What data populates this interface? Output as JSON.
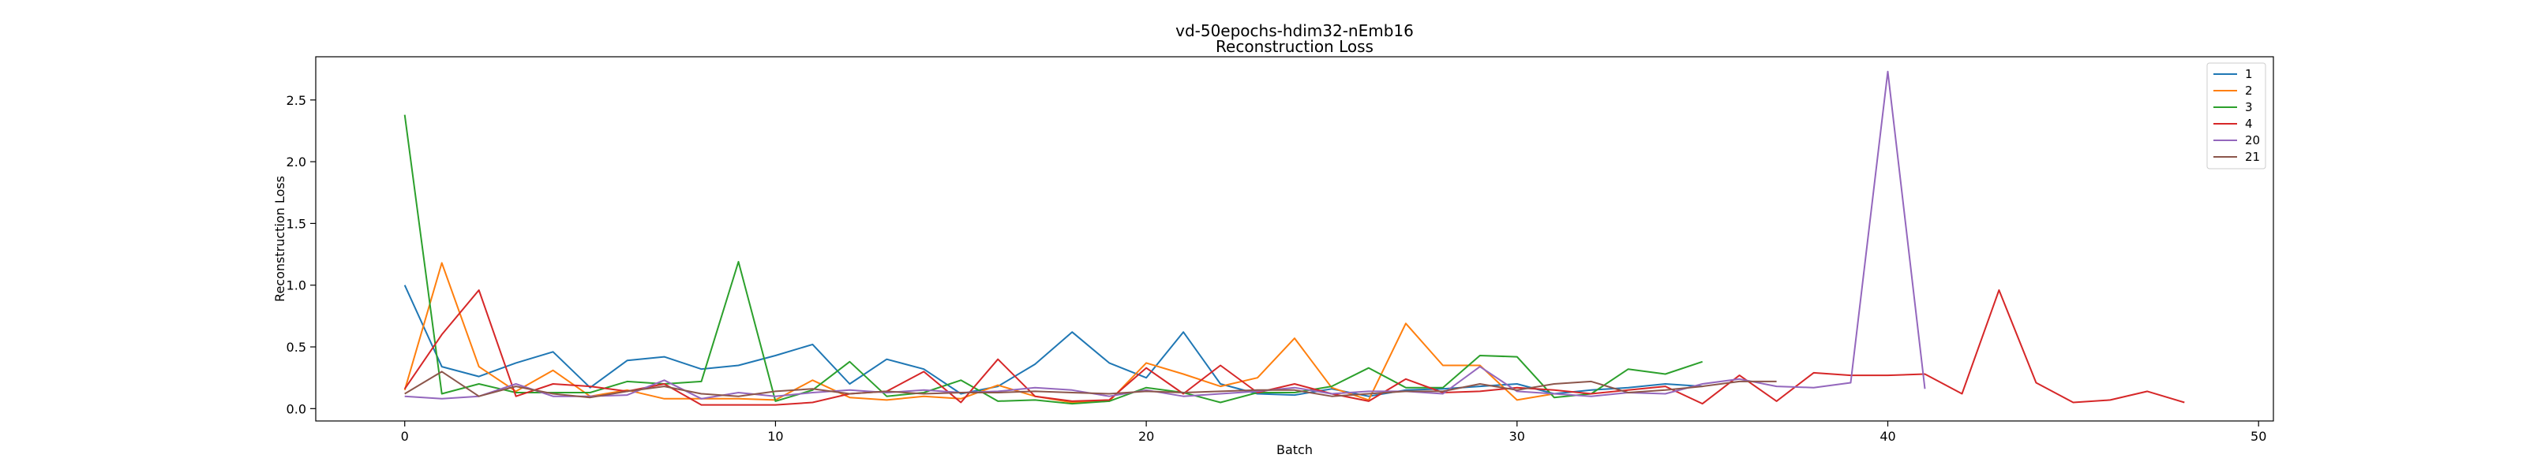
{
  "chart_data": {
    "type": "line",
    "title": "vd-50epochs-hdim32-nEmb16",
    "subtitle": "Reconstruction Loss",
    "xlabel": "Batch",
    "ylabel": "Reconstruction Loss",
    "xlim": [
      -2.4,
      50.4
    ],
    "ylim": [
      -0.1,
      2.85
    ],
    "xticks": [
      0,
      10,
      20,
      30,
      40,
      50
    ],
    "yticks": [
      0.0,
      0.5,
      1.0,
      1.5,
      2.0,
      2.5
    ],
    "xtick_labels": [
      "0",
      "10",
      "20",
      "30",
      "40",
      "50"
    ],
    "ytick_labels": [
      "0.0",
      "0.5",
      "1.0",
      "1.5",
      "2.0",
      "2.5"
    ],
    "grid": false,
    "legend_position": "top-right",
    "series": [
      {
        "name": "1",
        "color": "#1f77b4",
        "x": [
          0,
          1,
          2,
          3,
          4,
          5,
          6,
          7,
          8,
          9,
          10,
          11,
          12,
          13,
          14,
          15,
          16,
          17,
          18,
          19,
          20,
          21,
          22,
          23,
          24,
          25,
          26,
          27,
          28,
          29,
          30,
          31,
          32,
          33,
          34,
          35
        ],
        "y": [
          1.0,
          0.34,
          0.26,
          0.37,
          0.46,
          0.17,
          0.39,
          0.42,
          0.32,
          0.35,
          0.43,
          0.52,
          0.2,
          0.4,
          0.32,
          0.12,
          0.18,
          0.36,
          0.62,
          0.37,
          0.25,
          0.62,
          0.2,
          0.12,
          0.11,
          0.16,
          0.1,
          0.15,
          0.16,
          0.18,
          0.2,
          0.12,
          0.15,
          0.17,
          0.2,
          0.18
        ]
      },
      {
        "name": "2",
        "color": "#ff7f0e",
        "x": [
          0,
          1,
          2,
          3,
          4,
          5,
          6,
          7,
          8,
          9,
          10,
          11,
          12,
          13,
          14,
          15,
          16,
          17,
          18,
          19,
          20,
          21,
          22,
          23,
          24,
          25,
          26,
          27,
          28,
          29,
          30,
          31
        ],
        "y": [
          0.15,
          1.18,
          0.34,
          0.14,
          0.31,
          0.1,
          0.15,
          0.08,
          0.08,
          0.08,
          0.07,
          0.23,
          0.09,
          0.07,
          0.1,
          0.08,
          0.19,
          0.1,
          0.05,
          0.06,
          0.37,
          0.28,
          0.18,
          0.25,
          0.57,
          0.17,
          0.07,
          0.69,
          0.35,
          0.35,
          0.07,
          0.12
        ]
      },
      {
        "name": "3",
        "color": "#2ca02c",
        "x": [
          0,
          1,
          2,
          3,
          4,
          5,
          6,
          7,
          8,
          9,
          10,
          11,
          12,
          13,
          14,
          15,
          16,
          17,
          18,
          19,
          20,
          21,
          22,
          23,
          24,
          25,
          26,
          27,
          28,
          29,
          30,
          31,
          32,
          33,
          34,
          35
        ],
        "y": [
          2.38,
          0.12,
          0.2,
          0.13,
          0.13,
          0.13,
          0.22,
          0.2,
          0.22,
          1.19,
          0.06,
          0.15,
          0.38,
          0.1,
          0.13,
          0.23,
          0.06,
          0.07,
          0.04,
          0.06,
          0.17,
          0.13,
          0.05,
          0.13,
          0.13,
          0.18,
          0.33,
          0.17,
          0.17,
          0.43,
          0.42,
          0.09,
          0.12,
          0.32,
          0.28,
          0.38
        ]
      },
      {
        "name": "4",
        "color": "#d62728",
        "x": [
          0,
          1,
          2,
          3,
          4,
          5,
          6,
          7,
          8,
          9,
          10,
          11,
          12,
          13,
          14,
          15,
          16,
          17,
          18,
          19,
          20,
          21,
          22,
          23,
          24,
          25,
          26,
          27,
          28,
          29,
          30,
          31,
          32,
          33,
          34,
          35,
          36,
          37,
          38,
          39,
          40,
          41,
          42,
          43,
          44,
          45,
          46,
          47,
          48
        ],
        "y": [
          0.16,
          0.6,
          0.96,
          0.1,
          0.2,
          0.18,
          0.14,
          0.2,
          0.03,
          0.03,
          0.03,
          0.05,
          0.12,
          0.14,
          0.3,
          0.05,
          0.4,
          0.1,
          0.06,
          0.07,
          0.33,
          0.12,
          0.35,
          0.13,
          0.2,
          0.12,
          0.06,
          0.24,
          0.13,
          0.14,
          0.17,
          0.15,
          0.12,
          0.15,
          0.18,
          0.04,
          0.27,
          0.06,
          0.29,
          0.27,
          0.27,
          0.28,
          0.12,
          0.96,
          0.21,
          0.05,
          0.07,
          0.14,
          0.05
        ]
      },
      {
        "name": "20",
        "color": "#9467bd",
        "x": [
          0,
          1,
          2,
          3,
          4,
          5,
          6,
          7,
          8,
          9,
          10,
          11,
          12,
          13,
          14,
          15,
          16,
          17,
          18,
          19,
          20,
          21,
          22,
          23,
          24,
          25,
          26,
          27,
          28,
          29,
          30,
          31,
          32,
          33,
          34,
          35,
          36,
          37,
          38,
          39,
          40,
          41
        ],
        "y": [
          0.1,
          0.08,
          0.1,
          0.2,
          0.1,
          0.1,
          0.11,
          0.23,
          0.08,
          0.13,
          0.1,
          0.13,
          0.15,
          0.13,
          0.15,
          0.13,
          0.14,
          0.17,
          0.15,
          0.1,
          0.15,
          0.1,
          0.12,
          0.14,
          0.17,
          0.12,
          0.14,
          0.14,
          0.12,
          0.34,
          0.14,
          0.12,
          0.1,
          0.13,
          0.12,
          0.2,
          0.24,
          0.18,
          0.17,
          0.21,
          2.73,
          0.16
        ]
      },
      {
        "name": "21",
        "color": "#8c564b",
        "x": [
          0,
          1,
          2,
          3,
          4,
          5,
          6,
          7,
          8,
          9,
          10,
          11,
          12,
          13,
          14,
          15,
          16,
          17,
          18,
          19,
          20,
          21,
          22,
          23,
          24,
          25,
          26,
          27,
          28,
          29,
          30,
          31,
          32,
          33,
          34,
          35,
          36,
          37
        ],
        "y": [
          0.12,
          0.3,
          0.1,
          0.18,
          0.12,
          0.09,
          0.14,
          0.18,
          0.12,
          0.1,
          0.14,
          0.16,
          0.12,
          0.14,
          0.12,
          0.13,
          0.13,
          0.14,
          0.13,
          0.12,
          0.14,
          0.13,
          0.14,
          0.15,
          0.15,
          0.1,
          0.12,
          0.14,
          0.14,
          0.2,
          0.15,
          0.2,
          0.22,
          0.13,
          0.15,
          0.18,
          0.22,
          0.22
        ]
      }
    ]
  }
}
